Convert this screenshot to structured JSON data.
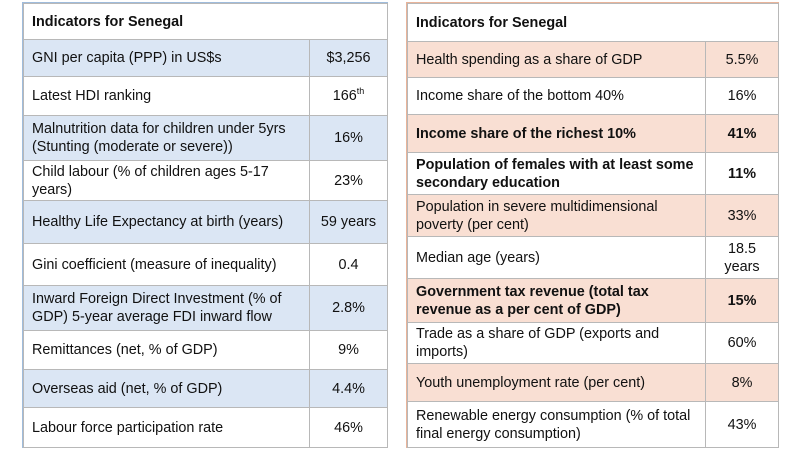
{
  "left_table": {
    "title": "Indicators for Senegal",
    "rows": [
      {
        "label": "GNI per capita (PPP) in US$s",
        "value": "$3,256"
      },
      {
        "label": "Latest HDI ranking",
        "value": "166",
        "value_sup": "th"
      },
      {
        "label": "Malnutrition data for children under 5yrs (Stunting (moderate or severe))",
        "value": "16%"
      },
      {
        "label": "Child labour (% of children ages 5-17 years)",
        "value": "23%"
      },
      {
        "label": "Healthy Life Expectancy at birth (years)",
        "value": "59 years"
      },
      {
        "label": "Gini coefficient (measure of inequality)",
        "value": "0.4"
      },
      {
        "label": "Inward Foreign Direct Investment (% of GDP) 5-year average FDI inward flow",
        "value": "2.8%"
      },
      {
        "label": "Remittances (net, % of GDP)",
        "value": "9%"
      },
      {
        "label": "Overseas aid (net, % of GDP)",
        "value": "4.4%"
      },
      {
        "label": "Labour force participation rate",
        "value": "46%"
      }
    ]
  },
  "right_table": {
    "title": "Indicators for Senegal",
    "rows": [
      {
        "label": "Health spending as a share of GDP",
        "value": "5.5%"
      },
      {
        "label": "Income share of the bottom 40%",
        "value": "16%"
      },
      {
        "label": "Income share of the richest 10%",
        "value": "41%"
      },
      {
        "label": "Population of females with at least some secondary education",
        "value": "11%"
      },
      {
        "label": "Population in severe multidimensional poverty (per cent)",
        "value": "33%"
      },
      {
        "label": "Median age (years)",
        "value": "18.5 years"
      },
      {
        "label": "Government tax revenue (total tax revenue as a per cent of GDP)",
        "value": "15%"
      },
      {
        "label": "Trade as a share of GDP (exports and imports)",
        "value": "60%"
      },
      {
        "label": "Youth unemployment rate (per cent)",
        "value": "8%"
      },
      {
        "label": "Renewable energy consumption (% of total final energy consumption)",
        "value": "43%"
      }
    ]
  },
  "colors": {
    "left_highlight": "#dbe6f4",
    "right_highlight": "#f9dfd3",
    "left_border": "#9fbcdc",
    "right_border": "#e9b49a"
  }
}
